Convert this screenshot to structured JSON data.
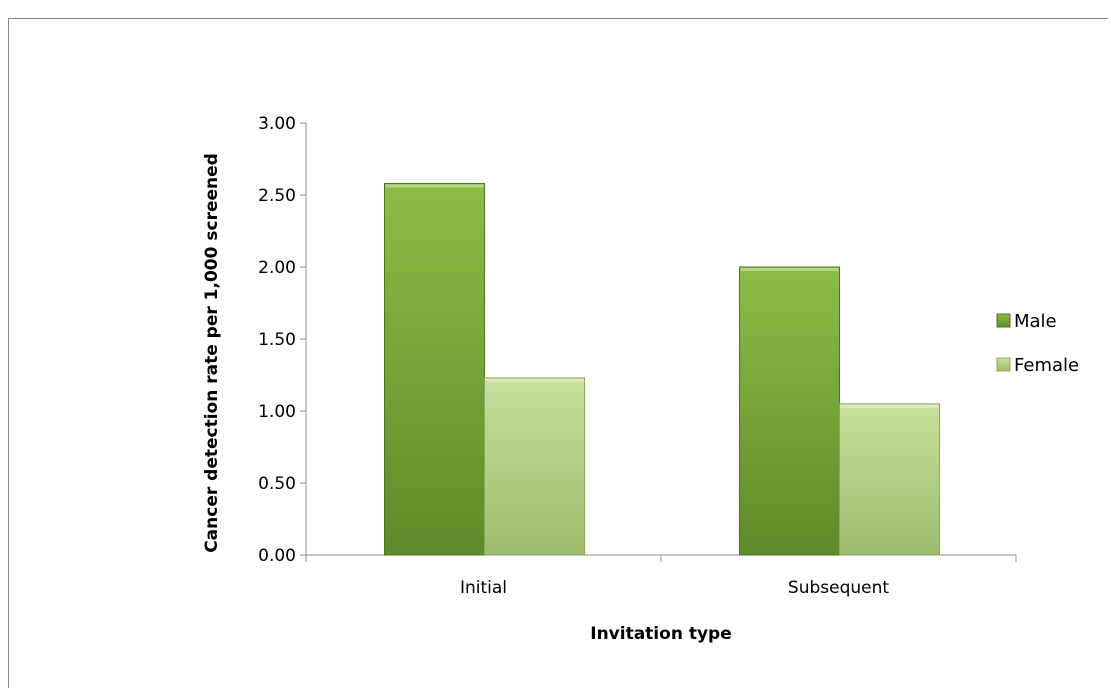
{
  "page_title_fragment": "",
  "chart_data": {
    "type": "bar",
    "categories": [
      "Initial",
      "Subsequent"
    ],
    "series": [
      {
        "name": "Male",
        "values": [
          2.58,
          2.0
        ],
        "color": "#7aa83a"
      },
      {
        "name": "Female",
        "values": [
          1.23,
          1.05
        ],
        "color": "#b9d48a"
      }
    ],
    "title": "",
    "xlabel": "Invitation type",
    "ylabel": "Cancer detection rate per 1,000 screened",
    "ylim": [
      0,
      3
    ],
    "yticks": [
      "0.00",
      "0.50",
      "1.00",
      "1.50",
      "2.00",
      "2.50",
      "3.00"
    ],
    "grid": false,
    "legend_position": "right"
  }
}
